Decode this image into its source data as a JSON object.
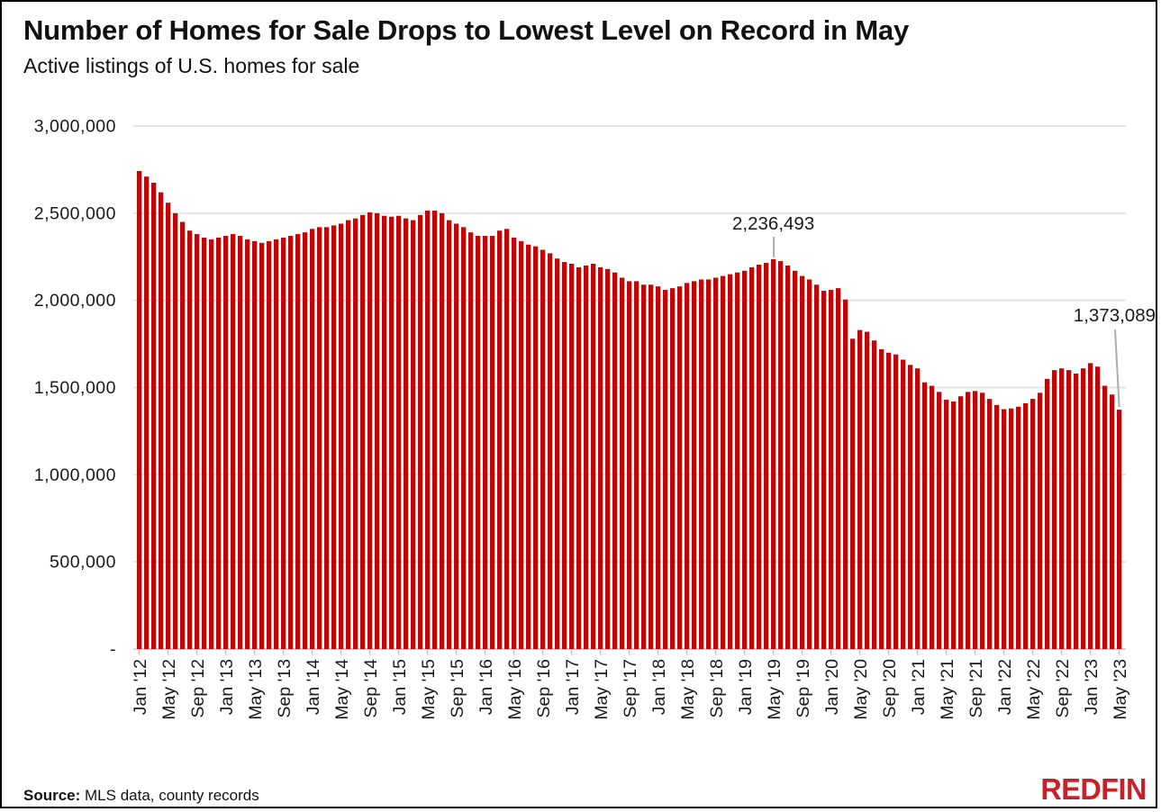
{
  "header": {
    "title": "Number of Homes for Sale Drops to Lowest Level on Record in May",
    "subtitle": "Active listings of U.S. homes for sale"
  },
  "footer": {
    "source_label": "Source:",
    "source_text": " MLS data, county records",
    "logo_text": "REDFIN"
  },
  "chart_data": {
    "type": "bar",
    "title": "Number of Homes for Sale Drops to Lowest Level on Record in May",
    "subtitle": "Active listings of U.S. homes for sale",
    "ylabel": "",
    "xlabel": "",
    "ylim": [
      0,
      3000000
    ],
    "grid": true,
    "bar_color": "#C00707",
    "grid_color": "#E4E4E4",
    "axis_color": "#CACACA",
    "text_color": "#1A1A1A",
    "annotation_line_color": "#ADADAD",
    "logo_color": "#C82028",
    "start_month": "Jan '12",
    "end_month": "May '23",
    "x_tick_every": 4,
    "x_tick_labels": [
      "Jan '12",
      "May '12",
      "Sep '12",
      "Jan '13",
      "May '13",
      "Sep '13",
      "Jan '14",
      "May '14",
      "Sep '14",
      "Jan '15",
      "May '15",
      "Sep '15",
      "Jan '16",
      "May '16",
      "Sep '16",
      "Jan '17",
      "May '17",
      "Sep '17",
      "Jan '18",
      "May '18",
      "Sep '18",
      "Jan '19",
      "May '19",
      "Sep '19",
      "Jan '20",
      "May '20",
      "Sep '20",
      "Jan '21",
      "May '21",
      "Sep '21",
      "Jan '22",
      "May '22",
      "Sep '22",
      "Jan '23",
      "May '23"
    ],
    "y_tick_labels": [
      "3,000,000",
      "2,500,000",
      "2,000,000",
      "1,500,000",
      "1,000,000",
      "500,000",
      "-"
    ],
    "y_tick_values": [
      3000000,
      2500000,
      2000000,
      1500000,
      1000000,
      500000,
      0
    ],
    "values": [
      2742000,
      2710000,
      2675000,
      2620000,
      2560000,
      2500000,
      2450000,
      2400000,
      2380000,
      2360000,
      2350000,
      2360000,
      2370000,
      2380000,
      2370000,
      2350000,
      2340000,
      2330000,
      2340000,
      2350000,
      2360000,
      2370000,
      2380000,
      2390000,
      2410000,
      2420000,
      2420000,
      2430000,
      2440000,
      2460000,
      2470000,
      2490000,
      2505000,
      2500000,
      2485000,
      2480000,
      2485000,
      2470000,
      2460000,
      2490000,
      2515000,
      2515000,
      2500000,
      2460000,
      2440000,
      2420000,
      2390000,
      2370000,
      2370000,
      2370000,
      2400000,
      2410000,
      2360000,
      2340000,
      2320000,
      2310000,
      2290000,
      2270000,
      2240000,
      2220000,
      2210000,
      2190000,
      2200000,
      2210000,
      2190000,
      2180000,
      2160000,
      2130000,
      2110000,
      2110000,
      2090000,
      2090000,
      2080000,
      2060000,
      2070000,
      2080000,
      2100000,
      2110000,
      2120000,
      2120000,
      2130000,
      2140000,
      2150000,
      2160000,
      2170000,
      2190000,
      2205000,
      2215000,
      2236493,
      2225000,
      2200000,
      2170000,
      2140000,
      2120000,
      2090000,
      2055000,
      2060000,
      2070000,
      2005000,
      1780000,
      1830000,
      1820000,
      1770000,
      1720000,
      1700000,
      1690000,
      1660000,
      1630000,
      1610000,
      1530000,
      1510000,
      1475000,
      1430000,
      1420000,
      1450000,
      1475000,
      1480000,
      1470000,
      1435000,
      1400000,
      1376000,
      1380000,
      1390000,
      1410000,
      1435000,
      1470000,
      1550000,
      1600000,
      1610000,
      1600000,
      1580000,
      1610000,
      1640000,
      1620000,
      1510000,
      1460000,
      1373089
    ],
    "annotations": [
      {
        "label": "2,236,493",
        "index": 88,
        "placement": "above"
      },
      {
        "label": "1,373,089",
        "index": 136,
        "placement": "upper-right"
      }
    ],
    "legend": null
  }
}
